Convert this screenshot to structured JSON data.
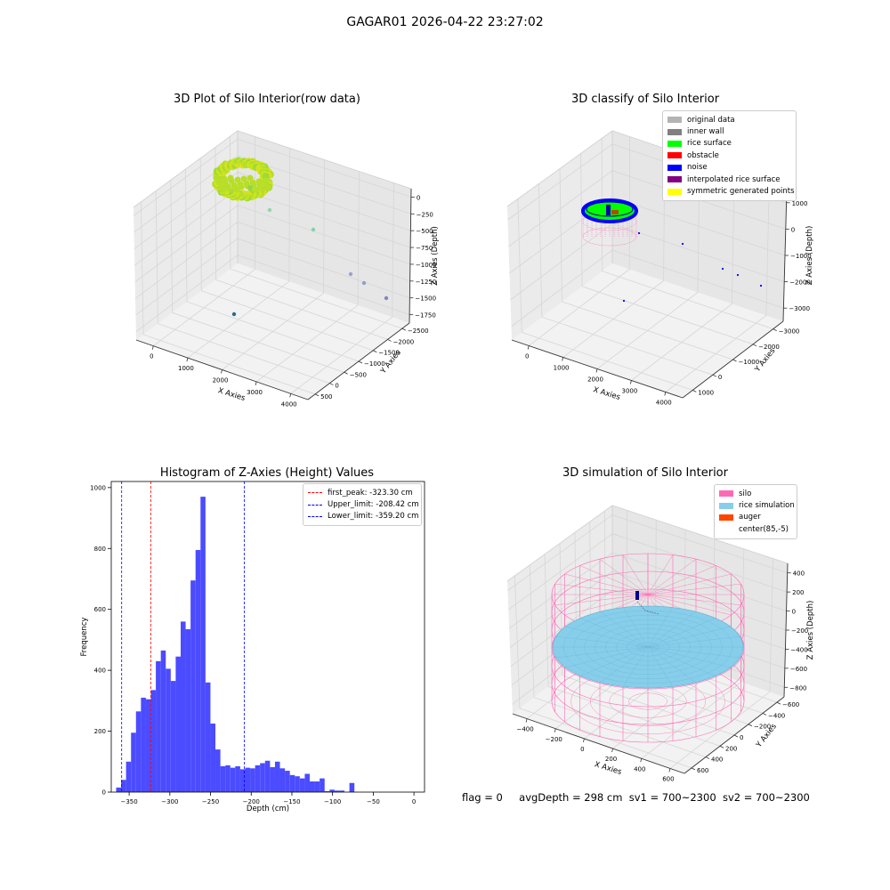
{
  "figure": {
    "suptitle": "GAGAR01 2026-04-22 23:27:02",
    "status": {
      "flag": "flag = 0",
      "avg_depth": "avgDepth = 298 cm",
      "sv1": "sv1 = 700~2300",
      "sv2": "sv2 = 700~2300"
    }
  },
  "plot1": {
    "title": "3D Plot of Silo Interior(row data)",
    "xlabel": "X Axies",
    "ylabel": "Y Axies",
    "zlabel": "Z Axies (Depth)",
    "xticks": [
      "0",
      "1000",
      "2000",
      "3000",
      "4000"
    ],
    "yticks": [
      "500",
      "0",
      "−500",
      "−1000",
      "−1500",
      "−2000",
      "−2500"
    ],
    "zticks": [
      "0",
      "−250",
      "−500",
      "−750",
      "−1000",
      "−1250",
      "−1500",
      "−1750"
    ]
  },
  "plot2": {
    "title": "3D classify of Silo Interior",
    "xlabel": "X Axies",
    "ylabel": "Y Axies",
    "zlabel": "Z Axies (Depth)",
    "xticks": [
      "0",
      "1000",
      "2000",
      "3000",
      "4000"
    ],
    "yticks": [
      "1000",
      "0",
      "−1000",
      "−2000",
      "−3000"
    ],
    "zticks": [
      "1000",
      "0",
      "−1000",
      "−2000",
      "−3000"
    ],
    "legend": [
      {
        "label": "original data",
        "color": "#b3b3b3"
      },
      {
        "label": "inner wall",
        "color": "#808080"
      },
      {
        "label": "rice surface",
        "color": "#00ff00"
      },
      {
        "label": "obstacle",
        "color": "#ff0000"
      },
      {
        "label": "noise",
        "color": "#0000ff"
      },
      {
        "label": "interpolated rice surface",
        "color": "#800080"
      },
      {
        "label": "symmetric generated points",
        "color": "#ffff00"
      }
    ]
  },
  "plot4": {
    "title": "3D simulation of Silo Interior",
    "xlabel": "X Axies",
    "ylabel": "Y Axies",
    "zlabel": "Z Axies (Depth)",
    "xticks": [
      "−400",
      "−200",
      "0",
      "200",
      "400",
      "600"
    ],
    "yticks": [
      "600",
      "400",
      "200",
      "0",
      "−200",
      "−400",
      "−600"
    ],
    "zticks": [
      "400",
      "200",
      "0",
      "−200",
      "−400",
      "−600",
      "−800"
    ],
    "legend": [
      {
        "label": "silo",
        "color": "#ff69b4"
      },
      {
        "label": "rice simulation",
        "color": "#87ceeb"
      },
      {
        "label": "auger",
        "color": "#ff4500"
      },
      {
        "label": "center(85,-5)",
        "color": ""
      }
    ]
  },
  "chart_data": [
    {
      "type": "histogram",
      "title": "Histogram of Z-Axies (Height) Values",
      "xlabel": "Depth (cm)",
      "ylabel": "Frequency",
      "xlim": [
        -372,
        13
      ],
      "ylim": [
        0,
        1020
      ],
      "xticks": [
        -350,
        -300,
        -250,
        -200,
        -150,
        -100,
        -50,
        0
      ],
      "xtick_labels": [
        "−350",
        "−300",
        "−250",
        "−200",
        "−150",
        "−100",
        "−50",
        "0"
      ],
      "yticks": [
        0,
        200,
        400,
        600,
        800,
        1000
      ],
      "bar_color": "#4b4bff",
      "bin_start": -366,
      "bin_width": 6.1,
      "counts": [
        15,
        40,
        100,
        195,
        265,
        310,
        305,
        335,
        430,
        465,
        405,
        365,
        445,
        560,
        535,
        695,
        795,
        970,
        360,
        225,
        140,
        85,
        88,
        80,
        85,
        75,
        80,
        78,
        88,
        95,
        103,
        82,
        100,
        78,
        70,
        56,
        52,
        45,
        60,
        35,
        35,
        45,
        3,
        8,
        5,
        5,
        0,
        30
      ],
      "lines": [
        {
          "name": "first_peak: -323.30 cm",
          "x": -323.3,
          "color": "#ff0000"
        },
        {
          "name": "Upper_limit: -208.42 cm",
          "x": -208.42,
          "color": "#0000ff"
        },
        {
          "name": "Lower_limit: -359.20 cm",
          "x": -359.2,
          "color": "#0000ff"
        }
      ],
      "legend_position": "top-right"
    }
  ]
}
